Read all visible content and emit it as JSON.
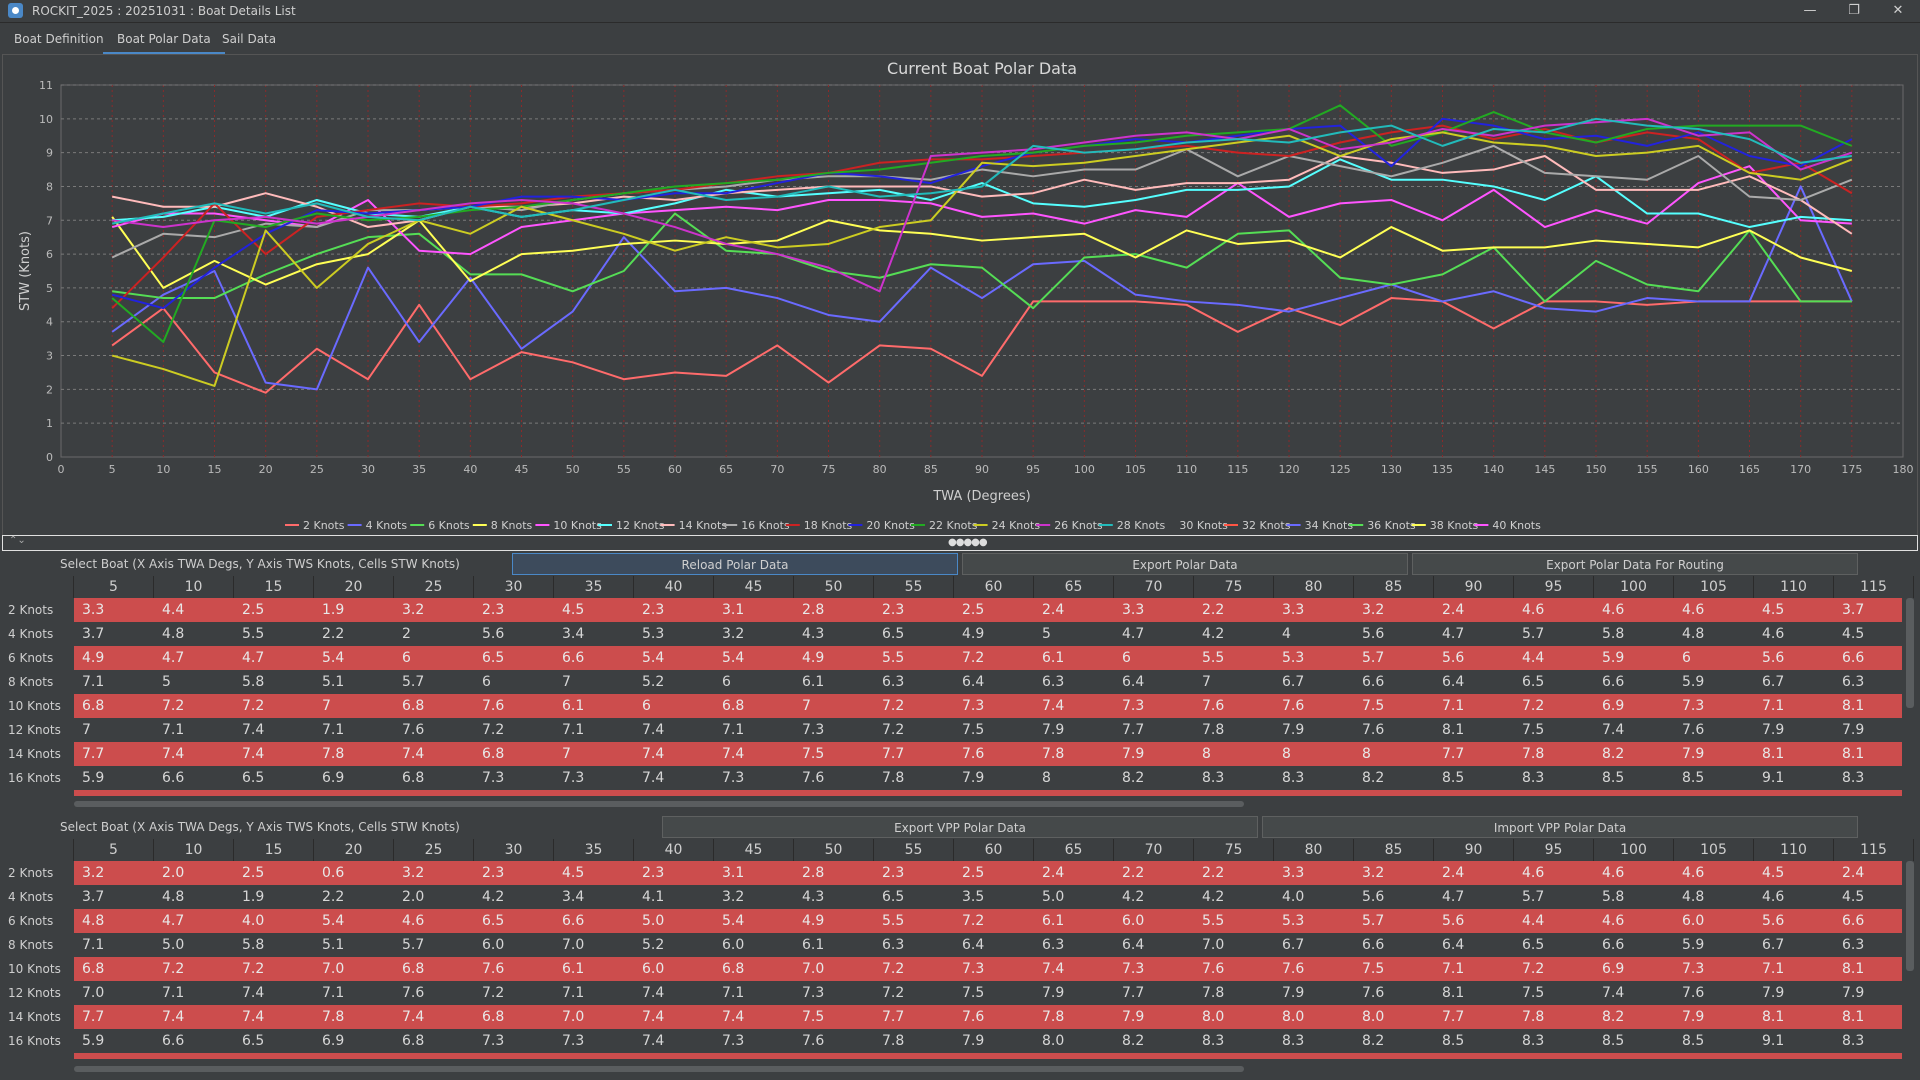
{
  "window": {
    "title": "ROCKIT_2025 : 20251031 : Boat Details List",
    "controls": [
      "—",
      "❐",
      "✕"
    ]
  },
  "tabs": [
    {
      "label": "Boat Definition",
      "active": false
    },
    {
      "label": "Boat Polar Data",
      "active": true
    },
    {
      "label": "Sail Data",
      "active": false
    }
  ],
  "chart_data": {
    "type": "line",
    "title": "Current Boat Polar Data",
    "xlabel": "TWA (Degrees)",
    "ylabel": "STW (Knots)",
    "xlim": [
      0,
      180
    ],
    "ylim": [
      0,
      11
    ],
    "x_ticks": [
      0,
      5,
      10,
      15,
      20,
      25,
      30,
      35,
      40,
      45,
      50,
      55,
      60,
      65,
      70,
      75,
      80,
      85,
      90,
      95,
      100,
      105,
      110,
      115,
      120,
      125,
      130,
      135,
      140,
      145,
      150,
      155,
      160,
      165,
      170,
      175,
      180
    ],
    "y_ticks": [
      0,
      1,
      2,
      3,
      4,
      5,
      6,
      7,
      8,
      9,
      10,
      11
    ],
    "grid": true,
    "legend_position": "bottom",
    "x": [
      5,
      10,
      15,
      20,
      25,
      30,
      35,
      40,
      45,
      50,
      55,
      60,
      65,
      70,
      75,
      80,
      85,
      90,
      95,
      100,
      105,
      110,
      115,
      120,
      125,
      130,
      135,
      140,
      145,
      150,
      155,
      160,
      165,
      170,
      175
    ],
    "series": [
      {
        "name": "2 Knots",
        "color": "#ff6b6b",
        "values": [
          3.3,
          4.4,
          2.5,
          1.9,
          3.2,
          2.3,
          4.5,
          2.3,
          3.1,
          2.8,
          2.3,
          2.5,
          2.4,
          3.3,
          2.2,
          3.3,
          3.2,
          2.4,
          4.6,
          4.6,
          4.6,
          4.5,
          3.7,
          4.4,
          3.9,
          4.7,
          4.6,
          3.8,
          4.6,
          4.6,
          4.5,
          4.6,
          4.6,
          4.6,
          4.6
        ]
      },
      {
        "name": "4 Knots",
        "color": "#6a6aff",
        "values": [
          3.7,
          4.8,
          5.5,
          2.2,
          2.0,
          5.6,
          3.4,
          5.3,
          3.2,
          4.3,
          6.5,
          4.9,
          5.0,
          4.7,
          4.2,
          4.0,
          5.6,
          4.7,
          5.7,
          5.8,
          4.8,
          4.6,
          4.5,
          4.3,
          4.7,
          5.1,
          4.6,
          4.9,
          4.4,
          4.3,
          4.7,
          4.6,
          4.6,
          8.0,
          4.6
        ]
      },
      {
        "name": "6 Knots",
        "color": "#55dd55",
        "values": [
          4.9,
          4.7,
          4.7,
          5.4,
          6.0,
          6.5,
          6.6,
          5.4,
          5.4,
          4.9,
          5.5,
          7.2,
          6.1,
          6.0,
          5.5,
          5.3,
          5.7,
          5.6,
          4.4,
          5.9,
          6.0,
          5.6,
          6.6,
          6.7,
          5.3,
          5.1,
          5.4,
          6.2,
          4.6,
          5.8,
          5.1,
          4.9,
          6.7,
          4.6,
          4.6
        ]
      },
      {
        "name": "8 Knots",
        "color": "#ffff55",
        "values": [
          7.1,
          5.0,
          5.8,
          5.1,
          5.7,
          6.0,
          7.0,
          5.2,
          6.0,
          6.1,
          6.3,
          6.4,
          6.3,
          6.4,
          7.0,
          6.7,
          6.6,
          6.4,
          6.5,
          6.6,
          5.9,
          6.7,
          6.3,
          6.4,
          5.9,
          6.8,
          6.1,
          6.2,
          6.2,
          6.4,
          6.3,
          6.2,
          6.7,
          5.9,
          5.5
        ]
      },
      {
        "name": "10 Knots",
        "color": "#ff55ff",
        "values": [
          6.8,
          7.2,
          7.2,
          7.0,
          6.8,
          7.6,
          6.1,
          6.0,
          6.8,
          7.0,
          7.2,
          7.3,
          7.4,
          7.3,
          7.6,
          7.6,
          7.5,
          7.1,
          7.2,
          6.9,
          7.3,
          7.1,
          8.1,
          7.1,
          7.5,
          7.6,
          7.0,
          7.9,
          6.8,
          7.3,
          6.9,
          8.1,
          8.6,
          7.0,
          6.9
        ]
      },
      {
        "name": "12 Knots",
        "color": "#55ffff",
        "values": [
          7.0,
          7.1,
          7.4,
          7.1,
          7.6,
          7.2,
          7.1,
          7.4,
          7.1,
          7.3,
          7.2,
          7.5,
          7.9,
          7.7,
          7.8,
          7.9,
          7.6,
          8.1,
          7.5,
          7.4,
          7.6,
          7.9,
          7.9,
          8.0,
          8.8,
          8.2,
          8.2,
          8.0,
          7.6,
          8.3,
          7.2,
          7.2,
          6.8,
          7.1,
          7.0
        ]
      },
      {
        "name": "14 Knots",
        "color": "#ffbbbb",
        "values": [
          7.7,
          7.4,
          7.4,
          7.8,
          7.4,
          6.8,
          7.0,
          7.4,
          7.4,
          7.5,
          7.7,
          7.6,
          7.8,
          7.9,
          8.0,
          8.0,
          8.0,
          7.7,
          7.8,
          8.2,
          7.9,
          8.1,
          8.1,
          8.2,
          8.9,
          8.7,
          8.4,
          8.5,
          8.9,
          7.9,
          7.9,
          7.9,
          8.3,
          7.6,
          6.6
        ]
      },
      {
        "name": "16 Knots",
        "color": "#aaaaaa",
        "values": [
          5.9,
          6.6,
          6.5,
          6.9,
          6.8,
          7.3,
          7.3,
          7.4,
          7.3,
          7.6,
          7.8,
          7.9,
          8.0,
          8.2,
          8.3,
          8.3,
          8.2,
          8.5,
          8.3,
          8.5,
          8.5,
          9.1,
          8.3,
          8.9,
          8.6,
          8.3,
          8.7,
          9.2,
          8.4,
          8.3,
          8.2,
          8.9,
          7.7,
          7.6,
          8.2
        ]
      },
      {
        "name": "18 Knots",
        "color": "#cc2222",
        "values": [
          4.4,
          5.9,
          7.5,
          6.0,
          7.1,
          7.3,
          7.5,
          7.4,
          7.5,
          7.7,
          7.8,
          7.9,
          8.1,
          8.3,
          8.4,
          8.7,
          8.8,
          8.8,
          8.9,
          9.0,
          9.1,
          9.2,
          9.0,
          8.9,
          9.3,
          9.6,
          9.8,
          9.4,
          9.7,
          9.3,
          9.6,
          9.4,
          8.4,
          8.7,
          7.8
        ]
      },
      {
        "name": "20 Knots",
        "color": "#2222dd",
        "values": [
          4.8,
          4.4,
          5.6,
          6.6,
          7.3,
          7.2,
          7.3,
          7.4,
          7.7,
          7.7,
          7.6,
          7.8,
          7.8,
          8.1,
          8.4,
          8.3,
          8.1,
          8.6,
          9.0,
          9.2,
          9.4,
          9.3,
          9.5,
          9.7,
          9.8,
          8.6,
          10.0,
          9.8,
          9.4,
          9.5,
          9.2,
          9.6,
          8.9,
          8.6,
          9.4
        ]
      },
      {
        "name": "22 Knots",
        "color": "#22aa22",
        "values": [
          4.7,
          3.4,
          7.0,
          6.8,
          7.2,
          7.0,
          7.1,
          7.3,
          7.4,
          7.6,
          7.8,
          8.0,
          8.1,
          8.2,
          8.4,
          8.5,
          8.7,
          8.9,
          9.0,
          9.2,
          9.3,
          9.5,
          9.6,
          9.7,
          10.4,
          9.2,
          9.6,
          10.2,
          9.6,
          9.3,
          9.7,
          9.8,
          9.8,
          9.8,
          9.2
        ]
      },
      {
        "name": "24 Knots",
        "color": "#cccc22",
        "values": [
          3.0,
          2.6,
          2.1,
          6.7,
          5.0,
          6.3,
          7.0,
          6.6,
          7.4,
          7.0,
          6.6,
          6.1,
          6.5,
          6.2,
          6.3,
          6.8,
          7.0,
          8.7,
          8.6,
          8.7,
          8.9,
          9.1,
          9.3,
          9.5,
          8.9,
          9.4,
          9.6,
          9.3,
          9.2,
          8.9,
          9.0,
          9.2,
          8.4,
          8.2,
          8.8
        ]
      },
      {
        "name": "26 Knots",
        "color": "#cc33cc",
        "values": [
          7.0,
          6.8,
          7.0,
          7.1,
          6.9,
          7.1,
          7.3,
          7.5,
          7.6,
          7.5,
          7.2,
          6.8,
          6.3,
          6.0,
          5.6,
          4.9,
          8.9,
          9.0,
          9.1,
          9.3,
          9.5,
          9.6,
          9.4,
          9.7,
          9.1,
          9.3,
          9.7,
          9.5,
          9.8,
          9.9,
          10.0,
          9.5,
          9.6,
          8.5,
          9.0
        ]
      },
      {
        "name": "28 Knots",
        "color": "#22bbbb",
        "values": [
          6.9,
          7.2,
          7.5,
          7.2,
          7.5,
          7.1,
          7.0,
          7.4,
          7.1,
          7.3,
          7.6,
          7.9,
          7.6,
          7.7,
          8.0,
          7.7,
          7.8,
          8.0,
          9.2,
          9.0,
          9.1,
          9.3,
          9.4,
          9.3,
          9.6,
          9.8,
          9.2,
          9.7,
          9.6,
          10.0,
          9.8,
          9.7,
          9.4,
          8.7,
          8.9
        ]
      }
    ],
    "extra_legend": [
      {
        "name": "30 Knots",
        "color": "#cfcfcf"
      },
      {
        "name": "32 Knots",
        "color": "#ff5544"
      },
      {
        "name": "34 Knots",
        "color": "#6a6aff"
      },
      {
        "name": "36 Knots",
        "color": "#55dd55"
      },
      {
        "name": "38 Knots",
        "color": "#ffff55"
      },
      {
        "name": "40 Knots",
        "color": "#ff55ff"
      }
    ]
  },
  "table1": {
    "select_label": "Select Boat (X Axis TWA Degs, Y Axis TWS Knots, Cells STW Knots)",
    "buttons": [
      "Reload Polar Data",
      "Export Polar Data",
      "Export Polar Data For Routing"
    ],
    "columns": [
      "5",
      "10",
      "15",
      "20",
      "25",
      "30",
      "35",
      "40",
      "45",
      "50",
      "55",
      "60",
      "65",
      "70",
      "75",
      "80",
      "85",
      "90",
      "95",
      "100",
      "105",
      "110",
      "115"
    ],
    "rows": [
      {
        "label": "2 Knots",
        "values": [
          "3.3",
          "4.4",
          "2.5",
          "1.9",
          "3.2",
          "2.3",
          "4.5",
          "2.3",
          "3.1",
          "2.8",
          "2.3",
          "2.5",
          "2.4",
          "3.3",
          "2.2",
          "3.3",
          "3.2",
          "2.4",
          "4.6",
          "4.6",
          "4.6",
          "4.5",
          "3.7"
        ]
      },
      {
        "label": "4 Knots",
        "values": [
          "3.7",
          "4.8",
          "5.5",
          "2.2",
          "2",
          "5.6",
          "3.4",
          "5.3",
          "3.2",
          "4.3",
          "6.5",
          "4.9",
          "5",
          "4.7",
          "4.2",
          "4",
          "5.6",
          "4.7",
          "5.7",
          "5.8",
          "4.8",
          "4.6",
          "4.5"
        ]
      },
      {
        "label": "6 Knots",
        "values": [
          "4.9",
          "4.7",
          "4.7",
          "5.4",
          "6",
          "6.5",
          "6.6",
          "5.4",
          "5.4",
          "4.9",
          "5.5",
          "7.2",
          "6.1",
          "6",
          "5.5",
          "5.3",
          "5.7",
          "5.6",
          "4.4",
          "5.9",
          "6",
          "5.6",
          "6.6"
        ]
      },
      {
        "label": "8 Knots",
        "values": [
          "7.1",
          "5",
          "5.8",
          "5.1",
          "5.7",
          "6",
          "7",
          "5.2",
          "6",
          "6.1",
          "6.3",
          "6.4",
          "6.3",
          "6.4",
          "7",
          "6.7",
          "6.6",
          "6.4",
          "6.5",
          "6.6",
          "5.9",
          "6.7",
          "6.3"
        ]
      },
      {
        "label": "10 Knots",
        "values": [
          "6.8",
          "7.2",
          "7.2",
          "7",
          "6.8",
          "7.6",
          "6.1",
          "6",
          "6.8",
          "7",
          "7.2",
          "7.3",
          "7.4",
          "7.3",
          "7.6",
          "7.6",
          "7.5",
          "7.1",
          "7.2",
          "6.9",
          "7.3",
          "7.1",
          "8.1"
        ]
      },
      {
        "label": "12 Knots",
        "values": [
          "7",
          "7.1",
          "7.4",
          "7.1",
          "7.6",
          "7.2",
          "7.1",
          "7.4",
          "7.1",
          "7.3",
          "7.2",
          "7.5",
          "7.9",
          "7.7",
          "7.8",
          "7.9",
          "7.6",
          "8.1",
          "7.5",
          "7.4",
          "7.6",
          "7.9",
          "7.9"
        ]
      },
      {
        "label": "14 Knots",
        "values": [
          "7.7",
          "7.4",
          "7.4",
          "7.8",
          "7.4",
          "6.8",
          "7",
          "7.4",
          "7.4",
          "7.5",
          "7.7",
          "7.6",
          "7.8",
          "7.9",
          "8",
          "8",
          "8",
          "7.7",
          "7.8",
          "8.2",
          "7.9",
          "8.1",
          "8.1"
        ]
      },
      {
        "label": "16 Knots",
        "values": [
          "5.9",
          "6.6",
          "6.5",
          "6.9",
          "6.8",
          "7.3",
          "7.3",
          "7.4",
          "7.3",
          "7.6",
          "7.8",
          "7.9",
          "8",
          "8.2",
          "8.3",
          "8.3",
          "8.2",
          "8.5",
          "8.3",
          "8.5",
          "8.5",
          "9.1",
          "8.3"
        ]
      }
    ]
  },
  "table2": {
    "select_label": "Select Boat (X Axis TWA Degs, Y Axis TWS Knots, Cells STW Knots)",
    "buttons": [
      "Export VPP Polar Data",
      "Import VPP Polar Data"
    ],
    "columns": [
      "5",
      "10",
      "15",
      "20",
      "25",
      "30",
      "35",
      "40",
      "45",
      "50",
      "55",
      "60",
      "65",
      "70",
      "75",
      "80",
      "85",
      "90",
      "95",
      "100",
      "105",
      "110",
      "115"
    ],
    "rows": [
      {
        "label": "2 Knots",
        "values": [
          "3.2",
          "2.0",
          "2.5",
          "0.6",
          "3.2",
          "2.3",
          "4.5",
          "2.3",
          "3.1",
          "2.8",
          "2.3",
          "2.5",
          "2.4",
          "2.2",
          "2.2",
          "3.3",
          "3.2",
          "2.4",
          "4.6",
          "4.6",
          "4.6",
          "4.5",
          "2.4"
        ]
      },
      {
        "label": "4 Knots",
        "values": [
          "3.7",
          "4.8",
          "1.9",
          "2.2",
          "2.0",
          "4.2",
          "3.4",
          "4.1",
          "3.2",
          "4.3",
          "6.5",
          "3.5",
          "5.0",
          "4.2",
          "4.2",
          "4.0",
          "5.6",
          "4.7",
          "5.7",
          "5.8",
          "4.8",
          "4.6",
          "4.5"
        ]
      },
      {
        "label": "6 Knots",
        "values": [
          "4.8",
          "4.7",
          "4.0",
          "5.4",
          "4.6",
          "6.5",
          "6.6",
          "5.0",
          "5.4",
          "4.9",
          "5.5",
          "7.2",
          "6.1",
          "6.0",
          "5.5",
          "5.3",
          "5.7",
          "5.6",
          "4.4",
          "4.6",
          "6.0",
          "5.6",
          "6.6"
        ]
      },
      {
        "label": "8 Knots",
        "values": [
          "7.1",
          "5.0",
          "5.8",
          "5.1",
          "5.7",
          "6.0",
          "7.0",
          "5.2",
          "6.0",
          "6.1",
          "6.3",
          "6.4",
          "6.3",
          "6.4",
          "7.0",
          "6.7",
          "6.6",
          "6.4",
          "6.5",
          "6.6",
          "5.9",
          "6.7",
          "6.3"
        ]
      },
      {
        "label": "10 Knots",
        "values": [
          "6.8",
          "7.2",
          "7.2",
          "7.0",
          "6.8",
          "7.6",
          "6.1",
          "6.0",
          "6.8",
          "7.0",
          "7.2",
          "7.3",
          "7.4",
          "7.3",
          "7.6",
          "7.6",
          "7.5",
          "7.1",
          "7.2",
          "6.9",
          "7.3",
          "7.1",
          "8.1"
        ]
      },
      {
        "label": "12 Knots",
        "values": [
          "7.0",
          "7.1",
          "7.4",
          "7.1",
          "7.6",
          "7.2",
          "7.1",
          "7.4",
          "7.1",
          "7.3",
          "7.2",
          "7.5",
          "7.9",
          "7.7",
          "7.8",
          "7.9",
          "7.6",
          "8.1",
          "7.5",
          "7.4",
          "7.6",
          "7.9",
          "7.9"
        ]
      },
      {
        "label": "14 Knots",
        "values": [
          "7.7",
          "7.4",
          "7.4",
          "7.8",
          "7.4",
          "6.8",
          "7.0",
          "7.4",
          "7.4",
          "7.5",
          "7.7",
          "7.6",
          "7.8",
          "7.9",
          "8.0",
          "8.0",
          "8.0",
          "7.7",
          "7.8",
          "8.2",
          "7.9",
          "8.1",
          "8.1"
        ]
      },
      {
        "label": "16 Knots",
        "values": [
          "5.9",
          "6.6",
          "6.5",
          "6.9",
          "6.8",
          "7.3",
          "7.3",
          "7.4",
          "7.3",
          "7.6",
          "7.8",
          "7.9",
          "8.0",
          "8.2",
          "8.3",
          "8.3",
          "8.2",
          "8.5",
          "8.3",
          "8.5",
          "8.5",
          "9.1",
          "8.3"
        ]
      }
    ]
  }
}
